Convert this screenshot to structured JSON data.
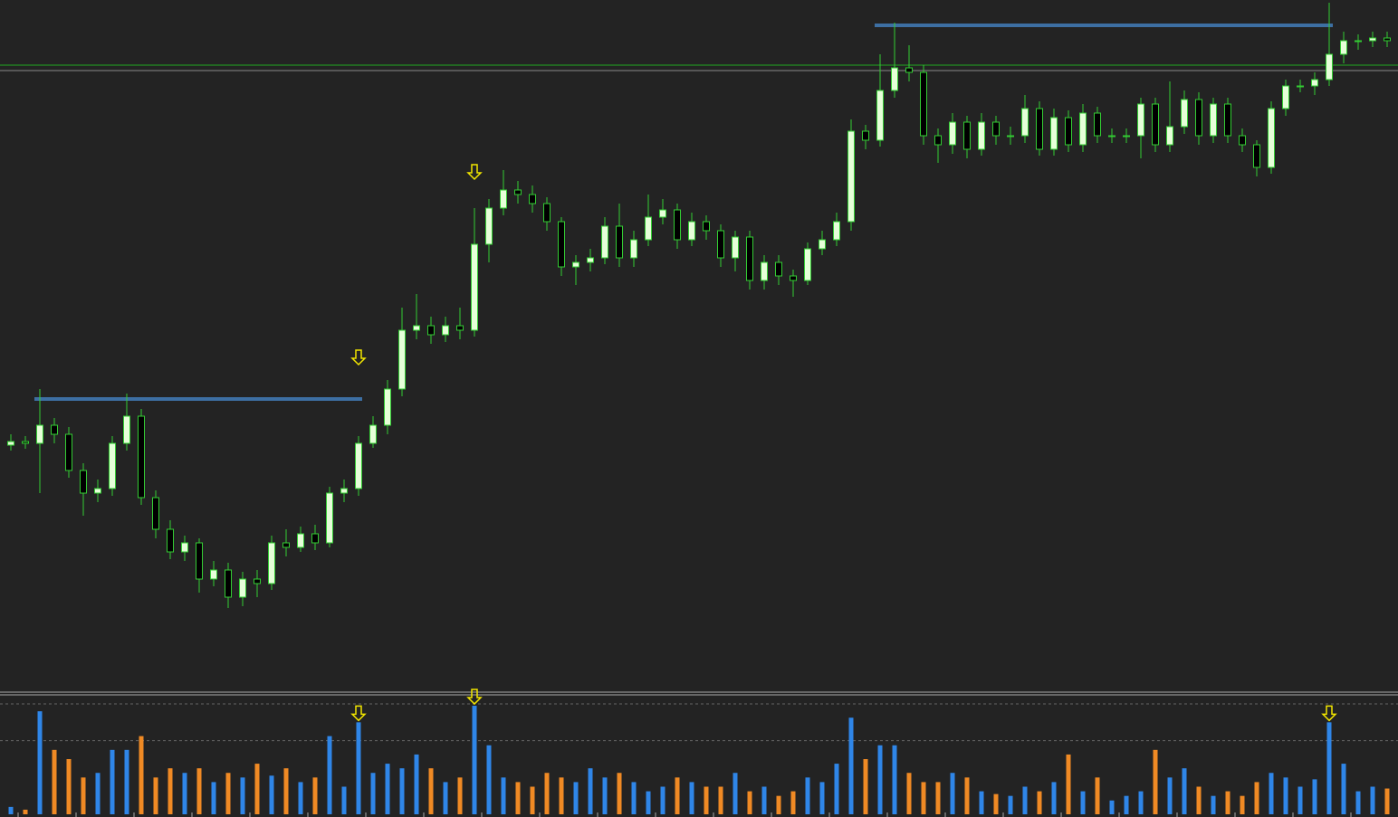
{
  "chart_data": {
    "type": "candlestick",
    "ylim": [
      0,
      760
    ],
    "up_color": "#e6ffd9",
    "down_color": "#000000",
    "wick_color": "#33cc33",
    "open": [
      268,
      272,
      270,
      290,
      280,
      240,
      215,
      220,
      270,
      300,
      210,
      175,
      150,
      160,
      120,
      130,
      100,
      120,
      115,
      160,
      155,
      170,
      160,
      215,
      220,
      270,
      290,
      330,
      395,
      400,
      390,
      400,
      395,
      490,
      530,
      550,
      545,
      535,
      515,
      465,
      470,
      475,
      510,
      475,
      495,
      520,
      528,
      495,
      515,
      505,
      475,
      498,
      450,
      470,
      455,
      450,
      485,
      495,
      515,
      615,
      605,
      660,
      685,
      680,
      610,
      600,
      625,
      595,
      625,
      610,
      610,
      640,
      595,
      630,
      600,
      635,
      610,
      610,
      610,
      645,
      600,
      620,
      650,
      610,
      645,
      610,
      600,
      575,
      640,
      665,
      665,
      672,
      700,
      715,
      715,
      718
    ],
    "high": [
      280,
      278,
      330,
      298,
      288,
      248,
      230,
      278,
      325,
      308,
      218,
      185,
      168,
      165,
      140,
      138,
      128,
      130,
      168,
      175,
      178,
      180,
      222,
      230,
      278,
      300,
      340,
      420,
      435,
      410,
      410,
      420,
      530,
      540,
      572,
      560,
      555,
      542,
      520,
      478,
      485,
      520,
      535,
      505,
      545,
      540,
      535,
      525,
      522,
      512,
      505,
      505,
      478,
      478,
      462,
      492,
      505,
      525,
      628,
      622,
      700,
      735,
      710,
      688,
      618,
      635,
      632,
      635,
      632,
      620,
      655,
      648,
      640,
      638,
      645,
      642,
      618,
      618,
      652,
      652,
      670,
      660,
      658,
      652,
      652,
      618,
      605,
      648,
      672,
      672,
      680,
      757,
      725,
      722,
      725,
      725
    ],
    "low": [
      262,
      264,
      215,
      270,
      232,
      190,
      205,
      212,
      262,
      202,
      165,
      142,
      140,
      105,
      112,
      88,
      90,
      100,
      108,
      145,
      150,
      152,
      155,
      205,
      212,
      265,
      280,
      322,
      385,
      380,
      382,
      385,
      388,
      470,
      522,
      535,
      525,
      505,
      455,
      445,
      460,
      468,
      465,
      465,
      488,
      512,
      485,
      488,
      495,
      465,
      460,
      440,
      440,
      445,
      432,
      445,
      478,
      488,
      505,
      595,
      598,
      652,
      670,
      600,
      580,
      590,
      585,
      588,
      600,
      600,
      602,
      588,
      588,
      592,
      592,
      602,
      602,
      602,
      585,
      592,
      592,
      612,
      600,
      602,
      602,
      592,
      565,
      568,
      632,
      658,
      655,
      665,
      690,
      705,
      708,
      708
    ],
    "close": [
      272,
      270,
      290,
      280,
      240,
      215,
      220,
      270,
      300,
      210,
      175,
      150,
      160,
      120,
      130,
      100,
      120,
      115,
      160,
      155,
      170,
      160,
      215,
      220,
      270,
      290,
      330,
      395,
      400,
      390,
      400,
      395,
      490,
      530,
      550,
      545,
      535,
      515,
      465,
      470,
      475,
      510,
      475,
      495,
      520,
      528,
      495,
      515,
      505,
      475,
      498,
      450,
      470,
      455,
      450,
      485,
      495,
      515,
      615,
      605,
      660,
      685,
      680,
      610,
      600,
      625,
      595,
      625,
      610,
      610,
      640,
      595,
      630,
      600,
      635,
      610,
      610,
      610,
      645,
      600,
      620,
      650,
      610,
      645,
      610,
      600,
      575,
      640,
      665,
      665,
      672,
      700,
      715,
      715,
      718,
      715
    ],
    "levels": [
      {
        "value": 319,
        "from": 2,
        "to": 24,
        "color": "#3d6fa3"
      },
      {
        "value": 732,
        "from": 60,
        "to": 91,
        "color": "#3d6fa3"
      }
    ],
    "hlines": [
      {
        "value": 688,
        "color": "#22aa22"
      },
      {
        "value": 682,
        "color": "#888888"
      }
    ],
    "signals": [
      {
        "index": 24,
        "price": 365
      },
      {
        "index": 32,
        "price": 570
      }
    ],
    "signal_color": "#f2e600",
    "volume": {
      "ylim": [
        0,
        120
      ],
      "yticks": [
        80,
        120
      ],
      "up_color": "#2f86e8",
      "down_color": "#f08a24",
      "values": [
        8,
        5,
        112,
        70,
        60,
        40,
        45,
        70,
        70,
        85,
        40,
        50,
        45,
        50,
        35,
        45,
        40,
        55,
        42,
        50,
        35,
        40,
        85,
        30,
        100,
        45,
        55,
        50,
        65,
        50,
        35,
        40,
        118,
        75,
        40,
        35,
        30,
        45,
        40,
        35,
        50,
        40,
        45,
        35,
        25,
        30,
        40,
        35,
        30,
        30,
        45,
        25,
        30,
        20,
        25,
        40,
        35,
        55,
        105,
        60,
        75,
        75,
        45,
        35,
        35,
        45,
        40,
        25,
        22,
        20,
        30,
        25,
        35,
        65,
        25,
        40,
        15,
        20,
        25,
        70,
        40,
        50,
        30,
        20,
        25,
        20,
        35,
        45,
        40,
        30,
        38,
        100,
        55,
        25,
        30,
        28
      ],
      "signals": [
        24,
        32,
        91
      ]
    }
  }
}
